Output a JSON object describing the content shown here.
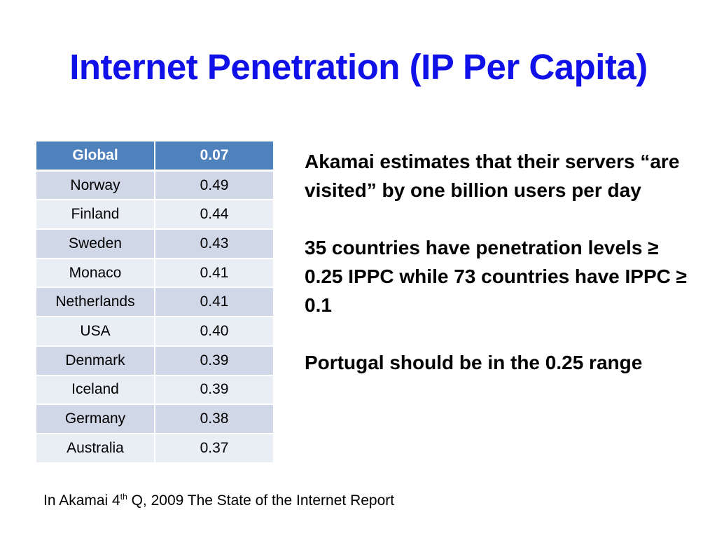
{
  "slide": {
    "title": "Internet Penetration (IP Per Capita)"
  },
  "table": {
    "header": {
      "label": "Global",
      "value": "0.07"
    },
    "rows": [
      {
        "country": "Norway",
        "value": "0.49"
      },
      {
        "country": "Finland",
        "value": "0.44"
      },
      {
        "country": "Sweden",
        "value": "0.43"
      },
      {
        "country": "Monaco",
        "value": "0.41"
      },
      {
        "country": "Netherlands",
        "value": "0.41"
      },
      {
        "country": "USA",
        "value": "0.40"
      },
      {
        "country": "Denmark",
        "value": "0.39"
      },
      {
        "country": "Iceland",
        "value": "0.39"
      },
      {
        "country": "Germany",
        "value": "0.38"
      },
      {
        "country": "Australia",
        "value": "0.37"
      }
    ]
  },
  "notes": [
    "Akamai estimates that their servers “are visited” by one billion users per day",
    "35 countries have penetration levels ≥ 0.25 IPPC while 73 countries have IPPC ≥ 0.1",
    "Portugal should be in the 0.25 range"
  ],
  "source": {
    "prefix": "In Akamai 4",
    "superscript": "th",
    "suffix": " Q, 2009 The State of the Internet Report"
  },
  "colors": {
    "title": "#1010e8",
    "header_bg": "#4f81bd",
    "row_odd": "#d0d8e8",
    "row_even": "#e9edf4"
  }
}
